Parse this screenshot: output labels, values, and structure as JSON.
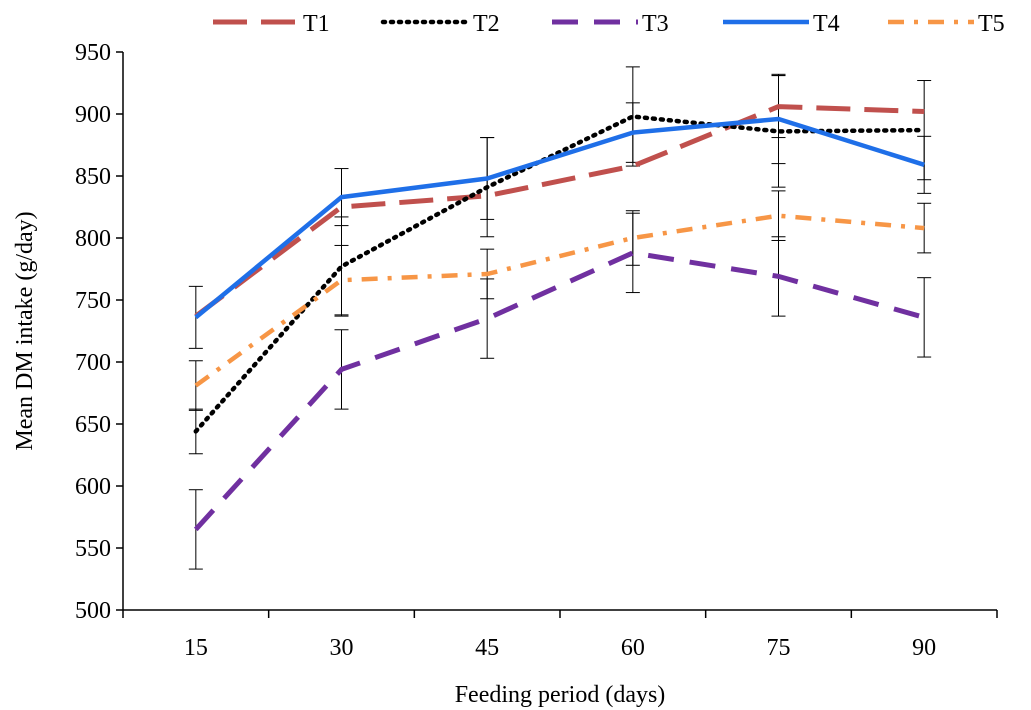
{
  "chart_data": {
    "type": "line",
    "xlabel": "Feeding period (days)",
    "ylabel": "Mean DM intake (g/day)",
    "categories": [
      "15",
      "30",
      "45",
      "60",
      "75",
      "90"
    ],
    "ylim": [
      500,
      950
    ],
    "yticks": [
      500,
      550,
      600,
      650,
      700,
      750,
      800,
      850,
      900,
      950
    ],
    "grid": false,
    "legend_position": "top",
    "series": [
      {
        "name": "T1",
        "values": [
          737,
          825,
          834,
          858,
          906,
          902
        ],
        "errors": [
          0,
          0,
          0,
          0,
          25,
          0
        ],
        "color": "#c0504d",
        "style": "long-dash"
      },
      {
        "name": "T2",
        "values": [
          644,
          777,
          841,
          898,
          886,
          887
        ],
        "errors": [
          18,
          40,
          40,
          40,
          45,
          40
        ],
        "color": "#000000",
        "style": "dotted"
      },
      {
        "name": "T3",
        "values": [
          565,
          694,
          735,
          788,
          769,
          736
        ],
        "errors": [
          32,
          32,
          32,
          32,
          32,
          32
        ],
        "color": "#7030a0",
        "style": "dashed"
      },
      {
        "name": "T4",
        "values": [
          736,
          833,
          848,
          885,
          896,
          859
        ],
        "errors": [
          25,
          23,
          33,
          24,
          36,
          23
        ],
        "color": "#1f6fe8",
        "style": "solid"
      },
      {
        "name": "T5",
        "values": [
          681,
          766,
          771,
          800,
          818,
          808
        ],
        "errors": [
          20,
          28,
          20,
          22,
          20,
          20
        ],
        "color": "#f79646",
        "style": "dash-dot"
      }
    ]
  }
}
